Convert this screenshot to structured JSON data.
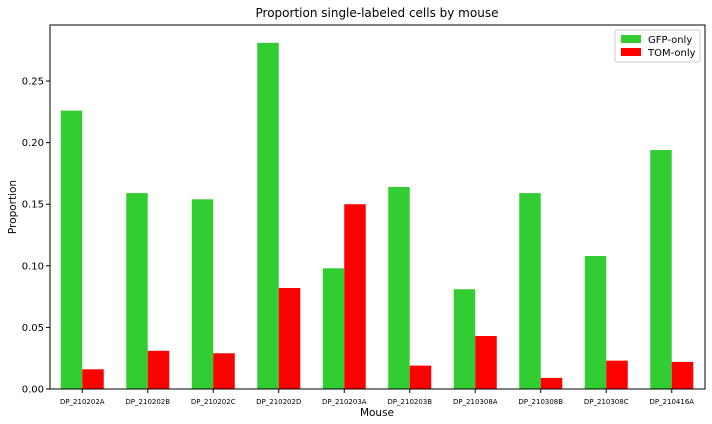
{
  "chart_data": {
    "type": "bar",
    "title": "Proportion single-labeled cells by mouse",
    "xlabel": "Mouse",
    "ylabel": "Proportion",
    "categories": [
      "DP_210202A",
      "DP_210202B",
      "DP_210202C",
      "DP_210202D",
      "DP_210203A",
      "DP_210203B",
      "DP_210308A",
      "DP_210308B",
      "DP_210308C",
      "DP_210416A"
    ],
    "series": [
      {
        "name": "GFP-only",
        "color": "#32cd32",
        "values": [
          0.226,
          0.159,
          0.154,
          0.281,
          0.098,
          0.164,
          0.081,
          0.159,
          0.108,
          0.194
        ]
      },
      {
        "name": "TOM-only",
        "color": "#ff0000",
        "values": [
          0.016,
          0.031,
          0.029,
          0.082,
          0.15,
          0.019,
          0.043,
          0.009,
          0.023,
          0.022
        ]
      }
    ],
    "ylim": [
      0,
      0.2955
    ],
    "yticks": [
      "0.00",
      "0.05",
      "0.10",
      "0.15",
      "0.20",
      "0.25"
    ],
    "grid": false,
    "legend_position": "top-right"
  }
}
